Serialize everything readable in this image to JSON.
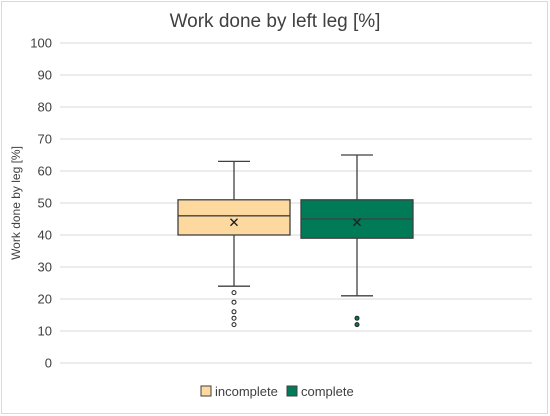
{
  "chart_data": {
    "type": "box",
    "title": "Work done by left leg [%]",
    "ylabel": "Work done by leg [%]",
    "xlabel": "",
    "ylim": [
      0,
      100
    ],
    "yticks": [
      0,
      10,
      20,
      30,
      40,
      50,
      60,
      70,
      80,
      90,
      100
    ],
    "grid": true,
    "legend_position": "bottom",
    "series": [
      {
        "name": "incomplete",
        "color": "#FDD9A0",
        "min": 24,
        "q1": 40,
        "median": 46,
        "q3": 51,
        "max": 63,
        "mean": 44,
        "outliers": [
          22,
          19,
          16,
          14,
          12
        ]
      },
      {
        "name": "complete",
        "color": "#007A57",
        "min": 21,
        "q1": 39,
        "median": 45,
        "q3": 51,
        "max": 65,
        "mean": 44,
        "outliers": [
          14,
          12
        ]
      }
    ]
  }
}
